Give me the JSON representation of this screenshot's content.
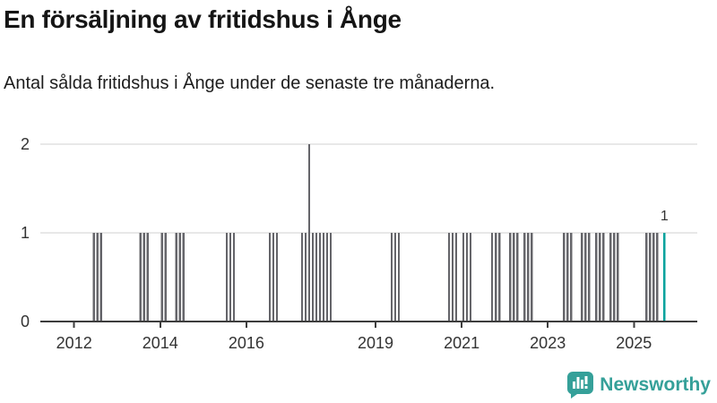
{
  "header": {
    "title": "En försäljning av fritidshus i Ånge",
    "subtitle": "Antal sålda fritidshus i Ånge under de senaste tre månaderna."
  },
  "footer": {
    "brand": "Newsworthy",
    "logo_icon": "newsworthy-chart-speech-bubble-icon"
  },
  "colors": {
    "bar": "#65656a",
    "highlight": "#00a29c",
    "brand": "#35a099",
    "grid": "#e8e8e8",
    "axis": "#3d3d3d",
    "tick_text": "#333333",
    "annotation_text": "#333333"
  },
  "chart_data": {
    "type": "bar",
    "title": "En försäljning av fritidshus i Ånge",
    "subtitle": "Antal sålda fritidshus i Ånge under de senaste tre månaderna.",
    "xlabel": "",
    "ylabel": "",
    "ylim": [
      0,
      2
    ],
    "y_ticks": [
      0,
      1,
      2
    ],
    "x_ticks": [
      2012,
      2014,
      2016,
      2019,
      2021,
      2023,
      2025
    ],
    "grid": "horizontal-only",
    "legend": "none",
    "highlight_month": "2025-09",
    "annotation": {
      "text": "1",
      "month": "2025-09"
    },
    "points": [
      {
        "month": "2012-06",
        "value": 1
      },
      {
        "month": "2012-07",
        "value": 1
      },
      {
        "month": "2012-08",
        "value": 1
      },
      {
        "month": "2013-07",
        "value": 1
      },
      {
        "month": "2013-08",
        "value": 1
      },
      {
        "month": "2013-09",
        "value": 1
      },
      {
        "month": "2014-01",
        "value": 1
      },
      {
        "month": "2014-02",
        "value": 1
      },
      {
        "month": "2014-05",
        "value": 1
      },
      {
        "month": "2014-06",
        "value": 1
      },
      {
        "month": "2014-07",
        "value": 1
      },
      {
        "month": "2015-07",
        "value": 1
      },
      {
        "month": "2015-08",
        "value": 1
      },
      {
        "month": "2015-09",
        "value": 1
      },
      {
        "month": "2016-07",
        "value": 1
      },
      {
        "month": "2016-08",
        "value": 1
      },
      {
        "month": "2016-09",
        "value": 1
      },
      {
        "month": "2017-04",
        "value": 1
      },
      {
        "month": "2017-05",
        "value": 1
      },
      {
        "month": "2017-06",
        "value": 2
      },
      {
        "month": "2017-07",
        "value": 1
      },
      {
        "month": "2017-08",
        "value": 1
      },
      {
        "month": "2017-09",
        "value": 1
      },
      {
        "month": "2017-10",
        "value": 1
      },
      {
        "month": "2017-11",
        "value": 1
      },
      {
        "month": "2017-12",
        "value": 1
      },
      {
        "month": "2019-05",
        "value": 1
      },
      {
        "month": "2019-06",
        "value": 1
      },
      {
        "month": "2019-07",
        "value": 1
      },
      {
        "month": "2020-09",
        "value": 1
      },
      {
        "month": "2020-10",
        "value": 1
      },
      {
        "month": "2020-11",
        "value": 1
      },
      {
        "month": "2021-01",
        "value": 1
      },
      {
        "month": "2021-02",
        "value": 1
      },
      {
        "month": "2021-03",
        "value": 1
      },
      {
        "month": "2021-09",
        "value": 1
      },
      {
        "month": "2021-10",
        "value": 1
      },
      {
        "month": "2021-11",
        "value": 1
      },
      {
        "month": "2022-02",
        "value": 1
      },
      {
        "month": "2022-03",
        "value": 1
      },
      {
        "month": "2022-04",
        "value": 1
      },
      {
        "month": "2022-06",
        "value": 1
      },
      {
        "month": "2022-07",
        "value": 1
      },
      {
        "month": "2022-08",
        "value": 1
      },
      {
        "month": "2023-05",
        "value": 1
      },
      {
        "month": "2023-06",
        "value": 1
      },
      {
        "month": "2023-07",
        "value": 1
      },
      {
        "month": "2023-10",
        "value": 1
      },
      {
        "month": "2023-11",
        "value": 1
      },
      {
        "month": "2023-12",
        "value": 1
      },
      {
        "month": "2024-02",
        "value": 1
      },
      {
        "month": "2024-03",
        "value": 1
      },
      {
        "month": "2024-04",
        "value": 1
      },
      {
        "month": "2024-06",
        "value": 1
      },
      {
        "month": "2024-07",
        "value": 1
      },
      {
        "month": "2024-08",
        "value": 1
      },
      {
        "month": "2025-04",
        "value": 1
      },
      {
        "month": "2025-05",
        "value": 1
      },
      {
        "month": "2025-06",
        "value": 1
      },
      {
        "month": "2025-07",
        "value": 1
      },
      {
        "month": "2025-09",
        "value": 1
      }
    ]
  }
}
